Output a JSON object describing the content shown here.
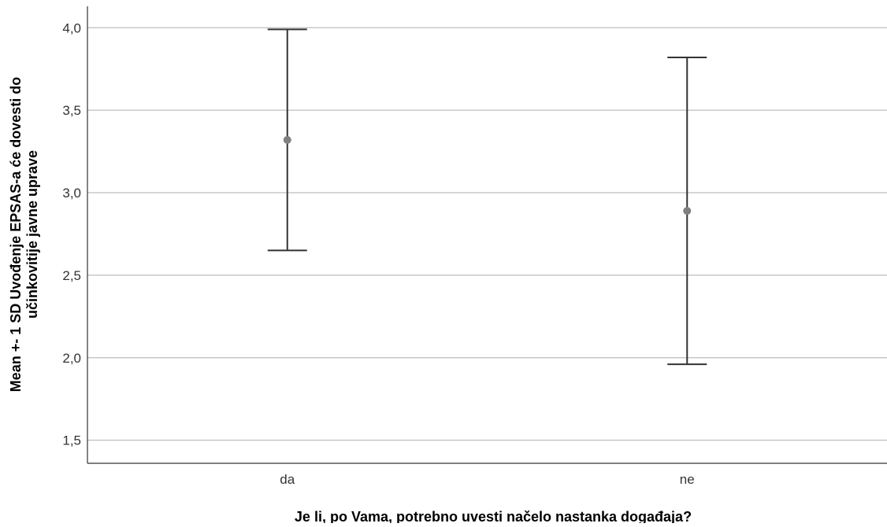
{
  "chart_data": {
    "type": "errorbar",
    "title": "",
    "xlabel": "Je li, po Vama, potrebno uvesti načelo nastanka događaja?",
    "ylabel_lines": [
      "Mean +- 1 SD Uvođenje EPSAS-a će dovesti do",
      "učinkovitije javne uprave"
    ],
    "categories": [
      "da",
      "ne"
    ],
    "series": [
      {
        "means": [
          3.32,
          2.89
        ],
        "lower": [
          2.65,
          1.96
        ],
        "upper": [
          3.99,
          3.82
        ]
      }
    ],
    "yticks": [
      1.5,
      2.0,
      2.5,
      3.0,
      3.5,
      4.0
    ],
    "ytick_labels": [
      "1,5",
      "2,0",
      "2,5",
      "3,0",
      "3,5",
      "4,0"
    ],
    "ylim": [
      1.36,
      4.13
    ],
    "grid": true,
    "colors": {
      "gridline": "#bdbdbd",
      "axis": "#333333",
      "errorbar": "#333333",
      "marker": "#808080"
    }
  }
}
